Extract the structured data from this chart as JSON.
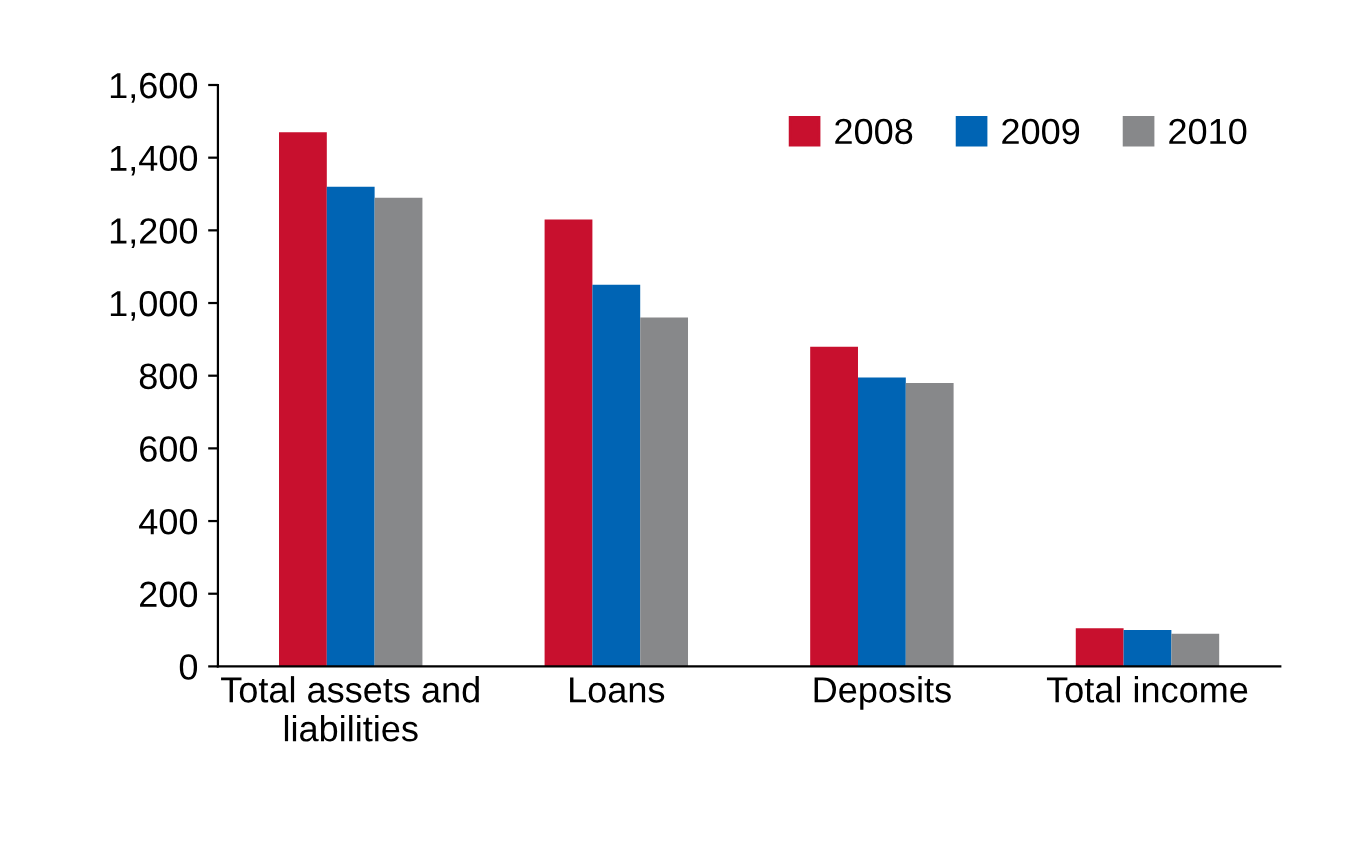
{
  "chart_data": {
    "type": "bar",
    "categories": [
      "Total assets and\nliabilities",
      "Loans",
      "Deposits",
      "Total income"
    ],
    "series": [
      {
        "name": "2008",
        "color": "#c8102e",
        "values": [
          1470,
          1230,
          880,
          105
        ]
      },
      {
        "name": "2009",
        "color": "#0064b4",
        "values": [
          1320,
          1050,
          795,
          100
        ]
      },
      {
        "name": "2010",
        "color": "#87888a",
        "values": [
          1290,
          960,
          780,
          90
        ]
      }
    ],
    "ylim": [
      0,
      1600
    ],
    "yticks": [
      {
        "value": 0,
        "label": "0"
      },
      {
        "value": 200,
        "label": "200"
      },
      {
        "value": 400,
        "label": "400"
      },
      {
        "value": 600,
        "label": "600"
      },
      {
        "value": 800,
        "label": "800"
      },
      {
        "value": 1000,
        "label": "1,000"
      },
      {
        "value": 1200,
        "label": "1,200"
      },
      {
        "value": 1400,
        "label": "1,400"
      },
      {
        "value": 1600,
        "label": "1,600"
      }
    ],
    "grid": false,
    "legend": "top right"
  }
}
